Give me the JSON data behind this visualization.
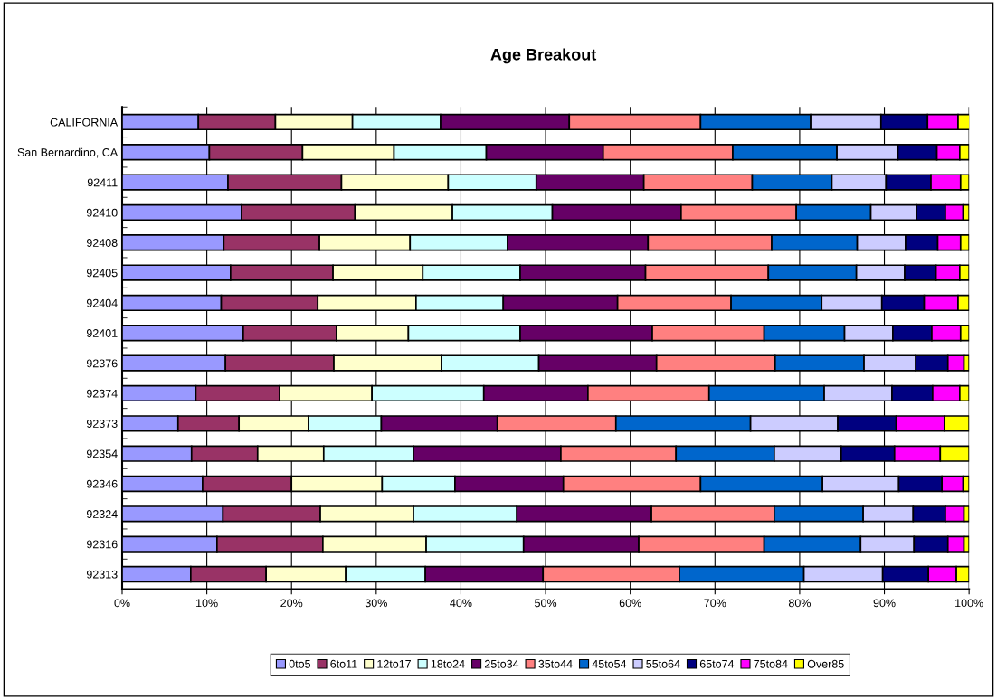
{
  "chart_data": {
    "type": "bar",
    "title": "Age Breakout",
    "orientation": "horizontal",
    "stacked": true,
    "categories": [
      "CALIFORNIA",
      "San Bernardino, CA",
      "92411",
      "92410",
      "92408",
      "92405",
      "92404",
      "92401",
      "92376",
      "92374",
      "92373",
      "92354",
      "92346",
      "92324",
      "92316",
      "92313"
    ],
    "series": [
      {
        "name": "0to5",
        "color": "#9999ff",
        "values": [
          9.0,
          10.3,
          12.5,
          14.1,
          12.0,
          12.8,
          11.7,
          14.3,
          12.2,
          8.7,
          6.6,
          8.2,
          9.5,
          11.9,
          11.2,
          8.1
        ]
      },
      {
        "name": "6to11",
        "color": "#993366",
        "values": [
          9.1,
          11.0,
          13.4,
          13.4,
          11.3,
          12.1,
          11.4,
          11.0,
          12.8,
          9.9,
          7.2,
          7.8,
          10.5,
          11.5,
          12.5,
          8.9
        ]
      },
      {
        "name": "12to17",
        "color": "#ffffcc",
        "values": [
          9.1,
          10.8,
          12.6,
          11.5,
          10.7,
          10.6,
          11.6,
          8.5,
          12.7,
          10.9,
          8.2,
          7.8,
          10.7,
          11.0,
          12.2,
          9.4
        ]
      },
      {
        "name": "18to24",
        "color": "#ccffff",
        "values": [
          10.4,
          10.9,
          10.4,
          11.8,
          11.5,
          11.5,
          10.3,
          13.2,
          11.5,
          13.2,
          8.6,
          10.6,
          8.6,
          12.2,
          11.5,
          9.4
        ]
      },
      {
        "name": "25to34",
        "color": "#660066",
        "values": [
          15.2,
          13.8,
          12.7,
          15.2,
          16.6,
          14.8,
          13.5,
          15.6,
          13.9,
          12.3,
          13.7,
          17.4,
          12.8,
          15.9,
          13.6,
          13.9
        ]
      },
      {
        "name": "35to44",
        "color": "#ff8080",
        "values": [
          15.5,
          15.3,
          12.8,
          13.6,
          14.6,
          14.5,
          13.4,
          13.2,
          14.0,
          14.3,
          14.0,
          13.6,
          16.2,
          14.5,
          14.8,
          16.1
        ]
      },
      {
        "name": "45to54",
        "color": "#0066cc",
        "values": [
          13.0,
          12.3,
          9.4,
          8.8,
          10.1,
          10.4,
          10.7,
          9.5,
          10.5,
          13.6,
          15.9,
          11.6,
          14.4,
          10.5,
          11.4,
          14.7
        ]
      },
      {
        "name": "55to64",
        "color": "#ccccff",
        "values": [
          8.3,
          7.2,
          6.4,
          5.4,
          5.7,
          5.7,
          7.1,
          5.7,
          6.1,
          8.0,
          10.3,
          7.9,
          9.0,
          5.9,
          6.3,
          9.3
        ]
      },
      {
        "name": "65to74",
        "color": "#000080",
        "values": [
          5.5,
          4.6,
          5.3,
          3.4,
          3.8,
          3.7,
          5.0,
          4.6,
          3.8,
          4.8,
          6.9,
          6.3,
          5.1,
          3.8,
          4.0,
          5.4
        ]
      },
      {
        "name": "75to84",
        "color": "#ff00ff",
        "values": [
          3.6,
          2.7,
          3.5,
          2.1,
          2.7,
          2.8,
          4.0,
          3.4,
          1.9,
          3.2,
          5.7,
          5.4,
          2.5,
          2.2,
          1.9,
          3.3
        ]
      },
      {
        "name": "Over85",
        "color": "#ffff00",
        "values": [
          1.4,
          1.1,
          1.0,
          0.7,
          1.0,
          1.1,
          1.3,
          1.0,
          0.6,
          1.1,
          2.9,
          3.4,
          0.7,
          0.6,
          0.6,
          1.5
        ]
      }
    ],
    "xlim": [
      0,
      100
    ],
    "xticks": [
      {
        "value": 0,
        "label": "0%"
      },
      {
        "value": 10,
        "label": "10%"
      },
      {
        "value": 20,
        "label": "20%"
      },
      {
        "value": 30,
        "label": "30%"
      },
      {
        "value": 40,
        "label": "40%"
      },
      {
        "value": 50,
        "label": "50%"
      },
      {
        "value": 60,
        "label": "60%"
      },
      {
        "value": 70,
        "label": "70%"
      },
      {
        "value": 80,
        "label": "80%"
      },
      {
        "value": 90,
        "label": "90%"
      },
      {
        "value": 100,
        "label": "100%"
      }
    ],
    "grid": "x",
    "legend": "bottom"
  }
}
